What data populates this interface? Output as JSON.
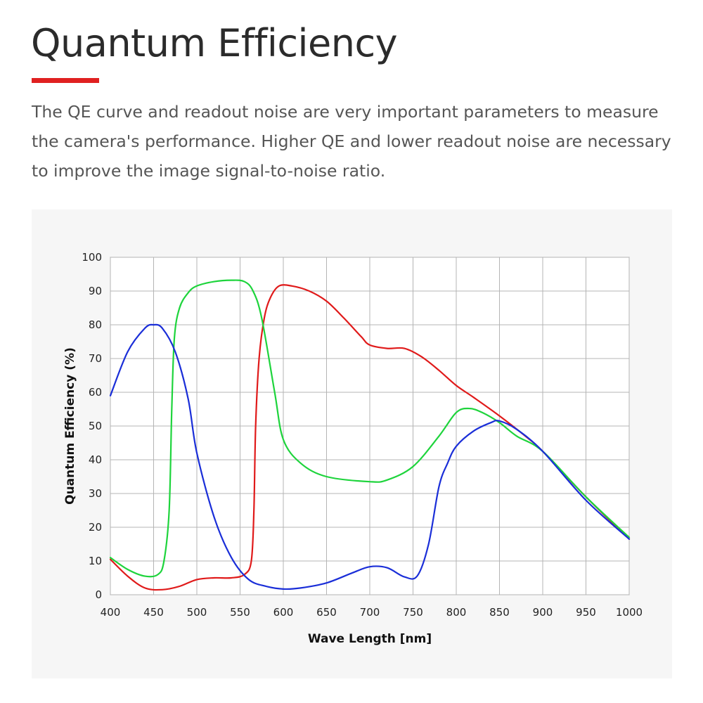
{
  "header": {
    "title": "Quantum Efficiency",
    "accent_color": "#e02020",
    "description": "The QE curve and readout noise are very important parameters to measure the camera's performance. Higher QE and lower readout noise are necessary to improve the image signal-to-noise ratio."
  },
  "chart_data": {
    "type": "line",
    "title": "",
    "xlabel": "Wave Length [nm]",
    "ylabel": "Quantum Efficiency (%)",
    "xlim": [
      400,
      1000
    ],
    "ylim": [
      0,
      100
    ],
    "xticks": [
      400,
      450,
      500,
      550,
      600,
      650,
      700,
      750,
      800,
      850,
      900,
      950,
      1000
    ],
    "yticks": [
      0,
      10,
      20,
      30,
      40,
      50,
      60,
      70,
      80,
      90,
      100
    ],
    "grid": true,
    "legend": "none",
    "series": [
      {
        "color": "#e01a1a",
        "x": [
          400,
          420,
          440,
          460,
          480,
          500,
          520,
          540,
          555,
          563,
          566,
          568,
          572,
          578,
          585,
          595,
          610,
          630,
          650,
          670,
          690,
          700,
          720,
          740,
          760,
          780,
          800,
          820,
          850,
          880,
          900,
          950,
          1000
        ],
        "y": [
          10.5,
          5.5,
          2,
          1.5,
          2.5,
          4.5,
          5,
          5,
          6,
          10,
          25,
          50,
          70,
          82,
          88,
          91.5,
          91.5,
          90,
          87,
          82,
          76.5,
          74,
          73,
          73,
          70.5,
          66.5,
          62,
          58.5,
          53,
          47,
          42.5,
          29,
          16.5
        ]
      },
      {
        "color": "#1ed43c",
        "x": [
          400,
          420,
          440,
          455,
          462,
          468,
          471,
          474,
          480,
          490,
          500,
          520,
          540,
          555,
          565,
          575,
          590,
          600,
          620,
          650,
          700,
          720,
          750,
          780,
          800,
          815,
          830,
          850,
          870,
          900,
          950,
          1000
        ],
        "y": [
          11,
          7.5,
          5.5,
          6,
          10,
          25,
          55,
          76,
          85,
          89.5,
          91.5,
          92.8,
          93.2,
          92.8,
          90,
          82,
          60,
          46,
          39,
          35,
          33.5,
          34,
          38,
          47,
          54,
          55.2,
          54,
          51,
          47,
          42.5,
          29,
          17
        ]
      },
      {
        "color": "#1a2ed8",
        "x": [
          400,
          420,
          440,
          450,
          460,
          475,
          490,
          500,
          520,
          540,
          560,
          580,
          600,
          620,
          650,
          680,
          700,
          720,
          740,
          755,
          768,
          780,
          790,
          800,
          820,
          840,
          850,
          870,
          900,
          950,
          1000
        ],
        "y": [
          59,
          72,
          79,
          80,
          79,
          72,
          58,
          42,
          23,
          11,
          4.5,
          2.5,
          1.7,
          2,
          3.5,
          6.5,
          8.3,
          8,
          5.3,
          5.6,
          15,
          32,
          39,
          44,
          48.5,
          51,
          51.5,
          49,
          42.5,
          28,
          16.5
        ]
      }
    ]
  }
}
